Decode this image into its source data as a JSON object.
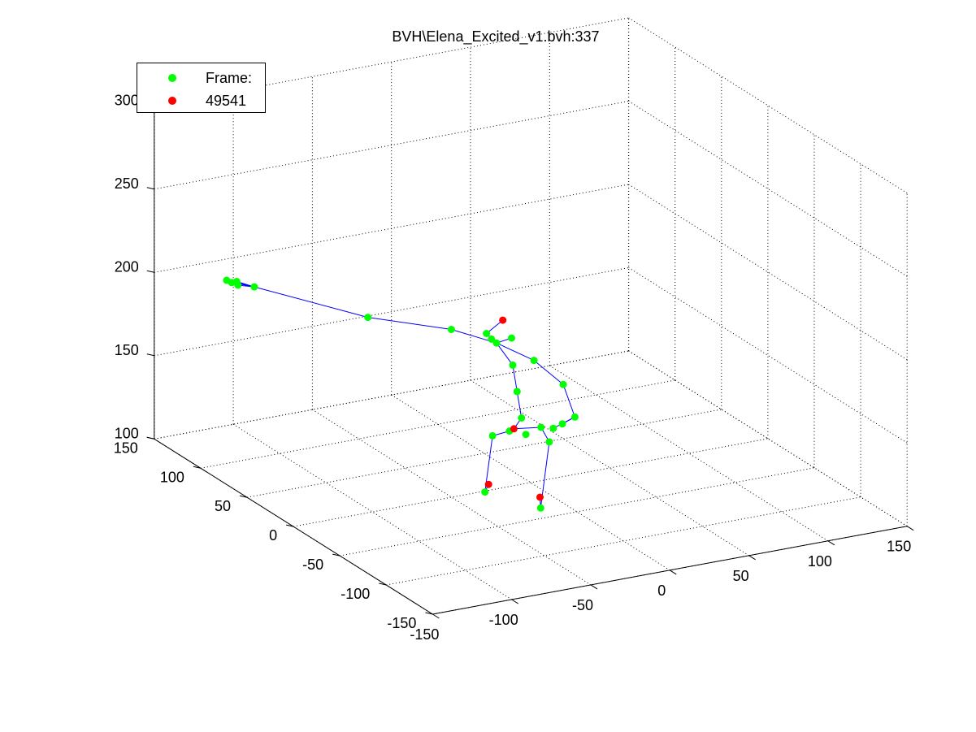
{
  "figure": {
    "title": "BVH\\Elena_Excited_v1.bvh:337",
    "background_color": "#ffffff",
    "grid_style": "dotted",
    "view": "3d"
  },
  "legend": {
    "placement": "top-left",
    "entries": [
      {
        "label": "Frame:",
        "color": "#00ff00",
        "marker": "circle"
      },
      {
        "label": "49541",
        "color": "#ff0000",
        "marker": "circle"
      }
    ]
  },
  "chart_data": {
    "type": "scatter",
    "title": "BVH\\Elena_Excited_v1.bvh:337",
    "xlabel": "",
    "ylabel": "",
    "zlabel": "",
    "xlim": [
      -150,
      150
    ],
    "ylim": [
      -150,
      150
    ],
    "zlim": [
      100,
      300
    ],
    "x_ticks": [
      -150,
      -100,
      -50,
      0,
      50,
      100,
      150
    ],
    "y_ticks": [
      -150,
      -100,
      -50,
      0,
      50,
      100,
      150
    ],
    "z_ticks": [
      100,
      150,
      200,
      250,
      300
    ],
    "grid": true,
    "legend_placement": "top-left",
    "series": [
      {
        "name": "Frame:",
        "color": "#00ff00",
        "points": [
          [
            -8,
            34,
            179
          ],
          [
            -6,
            32,
            176
          ],
          [
            -4,
            30,
            174
          ],
          [
            2,
            24,
            178
          ],
          [
            1,
            21,
            163
          ],
          [
            2,
            18,
            148
          ],
          [
            3,
            15,
            133
          ],
          [
            4,
            12,
            124
          ],
          [
            -4,
            16,
            126
          ],
          [
            13,
            11,
            127
          ],
          [
            -3,
            36,
            116
          ],
          [
            -9,
            34,
            84
          ],
          [
            20,
            14,
            116
          ],
          [
            11,
            8,
            80
          ],
          [
            15,
            22,
            163
          ],
          [
            30,
            16,
            148
          ],
          [
            35,
            12,
            129
          ],
          [
            30,
            17,
            124
          ],
          [
            26,
            20,
            121
          ],
          [
            -22,
            48,
            179
          ],
          [
            -56,
            80,
            181
          ],
          [
            -102,
            124,
            192
          ],
          [
            -109,
            131,
            194
          ],
          [
            -111,
            133,
            193
          ],
          [
            -113,
            135,
            194
          ],
          [
            -110,
            128,
            193
          ]
        ]
      },
      {
        "name": "49541",
        "color": "#ff0000",
        "points": [
          [
            0,
            30,
            187
          ],
          [
            0,
            18,
            126
          ],
          [
            -9,
            30,
            90
          ],
          [
            10,
            7,
            87
          ]
        ]
      }
    ],
    "bones": {
      "color": "#0000ff",
      "segments": [
        [
          [
            0,
            18,
            126
          ],
          [
            3,
            15,
            133
          ]
        ],
        [
          [
            3,
            15,
            133
          ],
          [
            2,
            18,
            148
          ]
        ],
        [
          [
            2,
            18,
            148
          ],
          [
            1,
            21,
            163
          ]
        ],
        [
          [
            1,
            21,
            163
          ],
          [
            -4,
            30,
            174
          ]
        ],
        [
          [
            -4,
            30,
            174
          ],
          [
            -8,
            34,
            179
          ]
        ],
        [
          [
            -8,
            34,
            179
          ],
          [
            0,
            30,
            187
          ]
        ],
        [
          [
            -4,
            30,
            174
          ],
          [
            -6,
            32,
            176
          ]
        ],
        [
          [
            -4,
            30,
            174
          ],
          [
            2,
            24,
            178
          ]
        ],
        [
          [
            0,
            18,
            126
          ],
          [
            -4,
            16,
            126
          ]
        ],
        [
          [
            -4,
            16,
            126
          ],
          [
            -3,
            36,
            116
          ]
        ],
        [
          [
            -3,
            36,
            116
          ],
          [
            -9,
            34,
            84
          ]
        ],
        [
          [
            -9,
            34,
            84
          ],
          [
            -9,
            30,
            90
          ]
        ],
        [
          [
            0,
            18,
            126
          ],
          [
            13,
            11,
            127
          ]
        ],
        [
          [
            13,
            11,
            127
          ],
          [
            20,
            14,
            116
          ]
        ],
        [
          [
            20,
            14,
            116
          ],
          [
            11,
            8,
            80
          ]
        ],
        [
          [
            11,
            8,
            80
          ],
          [
            10,
            7,
            87
          ]
        ],
        [
          [
            -4,
            30,
            174
          ],
          [
            15,
            22,
            163
          ]
        ],
        [
          [
            15,
            22,
            163
          ],
          [
            30,
            16,
            148
          ]
        ],
        [
          [
            30,
            16,
            148
          ],
          [
            35,
            12,
            129
          ]
        ],
        [
          [
            35,
            12,
            129
          ],
          [
            30,
            17,
            124
          ]
        ],
        [
          [
            35,
            12,
            129
          ],
          [
            26,
            20,
            121
          ]
        ],
        [
          [
            -4,
            30,
            174
          ],
          [
            -22,
            48,
            179
          ]
        ],
        [
          [
            -22,
            48,
            179
          ],
          [
            -56,
            80,
            181
          ]
        ],
        [
          [
            -56,
            80,
            181
          ],
          [
            -102,
            124,
            192
          ]
        ],
        [
          [
            -102,
            124,
            192
          ],
          [
            -109,
            131,
            194
          ]
        ],
        [
          [
            -102,
            124,
            192
          ],
          [
            -111,
            133,
            193
          ]
        ],
        [
          [
            -102,
            124,
            192
          ],
          [
            -113,
            135,
            194
          ]
        ],
        [
          [
            -102,
            124,
            192
          ],
          [
            -110,
            128,
            193
          ]
        ]
      ]
    }
  }
}
